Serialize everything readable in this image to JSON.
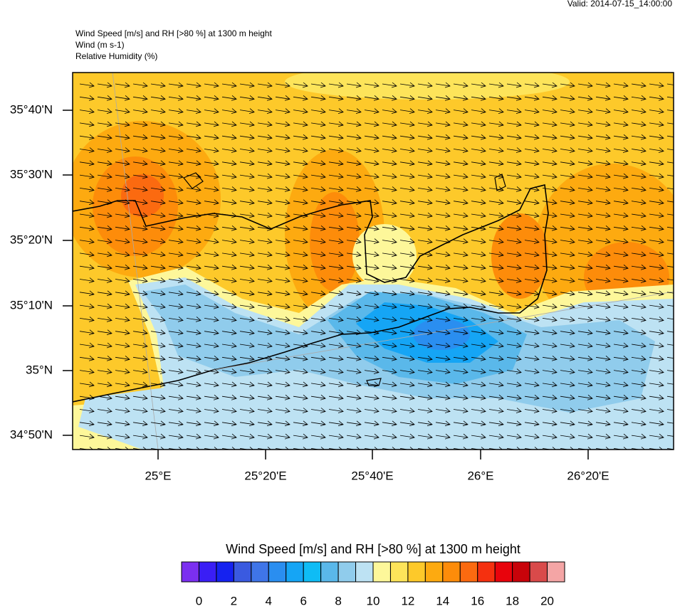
{
  "valid": "Valid: 2014-07-15_14:00:00",
  "header": {
    "title": "Wind Speed [m/s] and RH [>80 %] at 1300 m height",
    "wind": "Wind   (m s-1)",
    "rh": "Relative Humidity   (%)"
  },
  "lat_labels": [
    "35°40'N",
    "35°30'N",
    "35°20'N",
    "35°10'N",
    "35°N",
    "34°50'N"
  ],
  "lon_labels": [
    "25°E",
    "25°20'E",
    "25°40'E",
    "26°E",
    "26°20'E"
  ],
  "colorbar": {
    "title": "Wind Speed [m/s] and RH [>80 %] at 1300 m height",
    "colors": [
      "#7b2ff0",
      "#3a1ef5",
      "#1522f0",
      "#3a5ae0",
      "#3f75e8",
      "#2a8ef0",
      "#15a5f5",
      "#0fbcf5",
      "#5ab8ea",
      "#90ccec",
      "#bde2f3",
      "#fdf79a",
      "#fde45a",
      "#fdc92a",
      "#fdaa10",
      "#fd8c0a",
      "#fb6a10",
      "#f5300f",
      "#e8030c",
      "#c8030a",
      "#d94a4a",
      "#f4a5a5"
    ],
    "ticks": [
      0,
      2,
      4,
      6,
      8,
      10,
      12,
      14,
      16,
      18,
      20
    ]
  }
}
